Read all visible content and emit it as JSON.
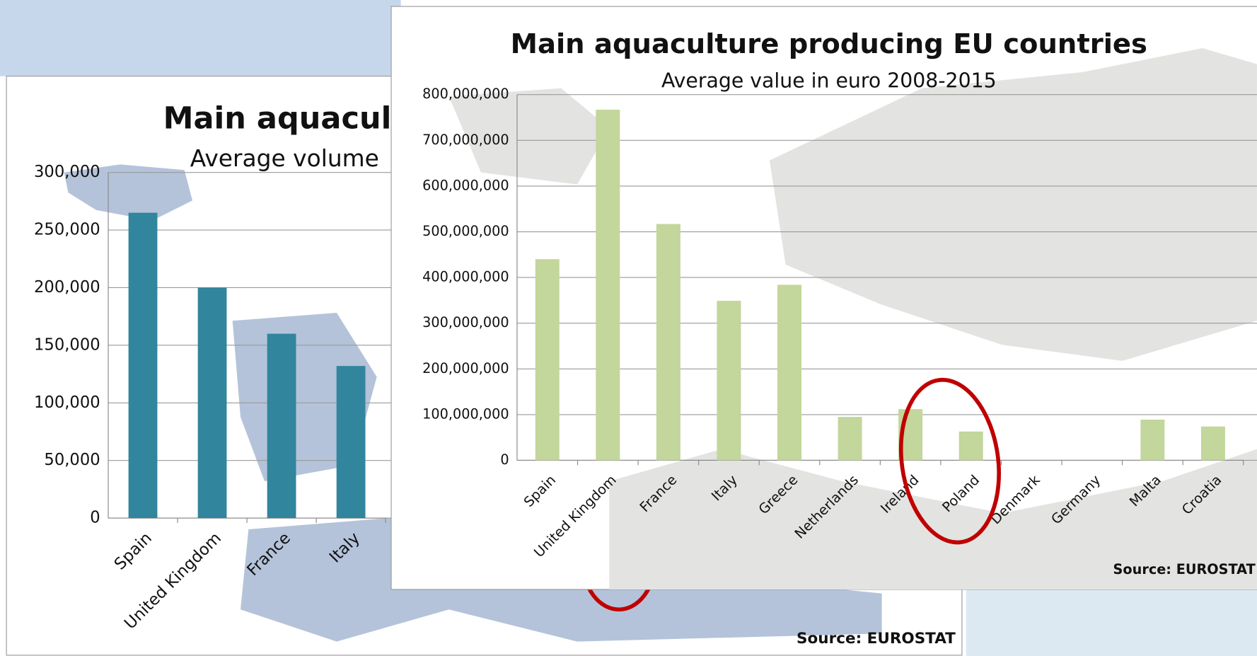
{
  "chart_data": [
    {
      "type": "bar",
      "title": "Main aquacult",
      "subtitle": "Average volume",
      "categories": [
        "Spain",
        "United Kingdom",
        "France",
        "Italy"
      ],
      "values": [
        265000,
        200000,
        160000,
        132000
      ],
      "color": "#31859c",
      "ylim": [
        0,
        300000
      ],
      "yticks": [
        0,
        {
          "value": 50000,
          "label": "50,000"
        },
        {
          "value": 100000,
          "label": "100,000"
        },
        {
          "value": 150000,
          "label": "150,000"
        },
        {
          "value": 200000,
          "label": "200,000"
        },
        {
          "value": 250000,
          "label": "250,000"
        },
        {
          "value": 300000,
          "label": "300,000"
        }
      ],
      "grid": true,
      "source": "Source: EUROSTAT"
    },
    {
      "type": "bar",
      "title": "Main aquaculture producing EU countries",
      "subtitle": "Average value in euro 2008-2015",
      "categories": [
        "Spain",
        "United Kingdom",
        "France",
        "Italy",
        "Greece",
        "Netherlands",
        "Ireland",
        "Poland",
        "Denmark",
        "Germany",
        "Malta",
        "Croatia"
      ],
      "values": [
        440000000,
        767000000,
        517000000,
        349000000,
        384000000,
        95000000,
        112000000,
        63000000,
        0,
        0,
        89000000,
        74000000
      ],
      "color": "#c3d69b",
      "ylim": [
        0,
        800000000
      ],
      "yticks": [
        0,
        {
          "value": 100000000,
          "label": "100,000,000"
        },
        {
          "value": 200000000,
          "label": "200,000,000"
        },
        {
          "value": 300000000,
          "label": "300,000,000"
        },
        {
          "value": 400000000,
          "label": "400,000,000"
        },
        {
          "value": 500000000,
          "label": "500,000,000"
        },
        {
          "value": 600000000,
          "label": "600,000,000"
        },
        {
          "value": 700000000,
          "label": "700,000,000"
        },
        {
          "value": 800000000,
          "label": "800,000,000"
        }
      ],
      "grid": true,
      "source": "Source: EUROSTAT"
    }
  ]
}
